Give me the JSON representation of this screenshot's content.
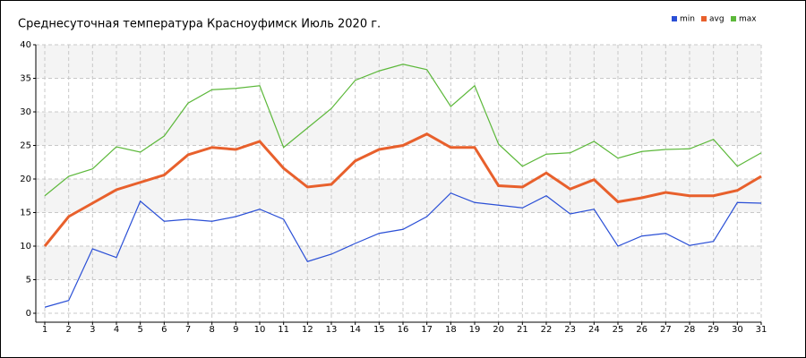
{
  "chart_data": {
    "type": "line",
    "title": "Среднесуточная температура Красноуфимск  Июль 2020 г.",
    "x": [
      1,
      2,
      3,
      4,
      5,
      6,
      7,
      8,
      9,
      10,
      11,
      12,
      13,
      14,
      15,
      16,
      17,
      18,
      19,
      20,
      21,
      22,
      23,
      24,
      25,
      26,
      27,
      28,
      29,
      30,
      31
    ],
    "xlim": [
      1,
      31
    ],
    "xticks": [
      1,
      2,
      3,
      4,
      5,
      6,
      7,
      8,
      9,
      10,
      11,
      12,
      13,
      14,
      15,
      16,
      17,
      18,
      19,
      20,
      21,
      22,
      23,
      24,
      25,
      26,
      27,
      28,
      29,
      30,
      31
    ],
    "ylim": [
      0,
      40
    ],
    "yticks": [
      0,
      5,
      10,
      15,
      20,
      25,
      30,
      35,
      40
    ],
    "grid": true,
    "legend": "top-right",
    "series": [
      {
        "name": "min",
        "color": "#2a4fd6",
        "values": [
          0.9,
          1.9,
          9.6,
          8.3,
          16.7,
          13.7,
          14.0,
          13.7,
          14.4,
          15.5,
          14.0,
          7.7,
          8.8,
          10.4,
          11.9,
          12.5,
          14.4,
          17.9,
          16.5,
          16.1,
          15.7,
          17.5,
          14.8,
          15.5,
          10.0,
          11.5,
          11.9,
          10.1,
          10.7,
          16.5,
          16.4
        ]
      },
      {
        "name": "avg",
        "color": "#e8602c",
        "values": [
          10.0,
          14.4,
          16.4,
          18.4,
          19.5,
          20.6,
          23.6,
          24.7,
          24.4,
          25.6,
          21.6,
          18.8,
          19.2,
          22.7,
          24.4,
          25.0,
          26.7,
          24.7,
          24.7,
          19.0,
          18.8,
          20.9,
          18.5,
          19.9,
          16.6,
          17.2,
          18.0,
          17.5,
          17.5,
          18.3,
          20.4
        ]
      },
      {
        "name": "max",
        "color": "#5cb83a",
        "values": [
          17.5,
          20.4,
          21.5,
          24.8,
          24.0,
          26.4,
          31.3,
          33.3,
          33.5,
          33.9,
          24.7,
          27.6,
          30.5,
          34.7,
          36.1,
          37.1,
          36.3,
          30.8,
          33.9,
          25.2,
          21.9,
          23.7,
          23.9,
          25.6,
          23.1,
          24.1,
          24.4,
          24.5,
          25.9,
          21.9,
          23.9
        ]
      }
    ]
  }
}
